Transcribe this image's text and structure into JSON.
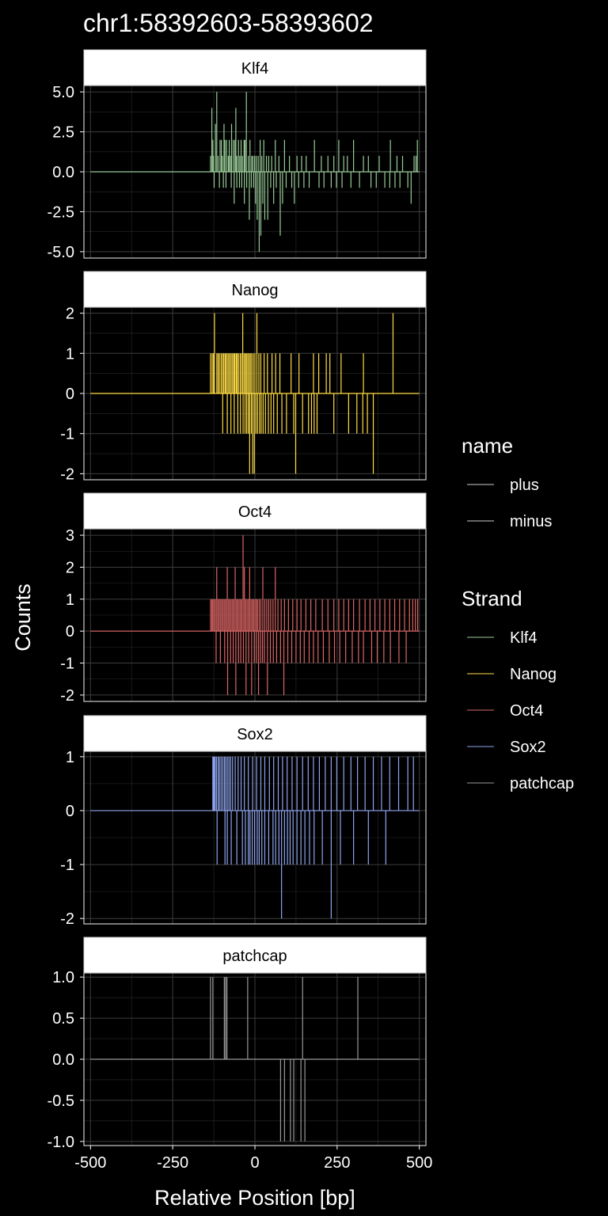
{
  "chart_data": {
    "type": "line",
    "title": "chr1:58392603-58393602",
    "xlabel": "Relative Position [bp]",
    "ylabel": "Counts",
    "xlim": [
      -520,
      520
    ],
    "x_ticks": [
      -500,
      -250,
      0,
      250,
      500
    ],
    "x_tick_labels": [
      "-500",
      "-250",
      "0",
      "250",
      "500"
    ],
    "grid": true,
    "legend_position": "right",
    "legends": [
      {
        "title": "name",
        "entries": [
          {
            "label": "plus",
            "color": "#cccccc"
          },
          {
            "label": "minus",
            "color": "#cccccc"
          }
        ]
      },
      {
        "title": "Strand",
        "entries": [
          {
            "label": "Klf4",
            "color": "#99cc99"
          },
          {
            "label": "Nanog",
            "color": "#ffdd44"
          },
          {
            "label": "Oct4",
            "color": "#dd6666"
          },
          {
            "label": "Sox2",
            "color": "#8fa4ee"
          },
          {
            "label": "patchcap",
            "color": "#999999"
          }
        ]
      }
    ],
    "facets": [
      {
        "label": "Klf4",
        "color": "#99cc99",
        "ylim": [
          -5.4,
          5.4
        ],
        "y_ticks": [
          -5,
          -2.5,
          0,
          2.5,
          5
        ],
        "y_tick_labels": [
          "-5.0",
          "-2.5",
          "0.0",
          "2.5",
          "5.0"
        ],
        "plus_x": [
          -135,
          -131,
          -128,
          -126,
          -120,
          -116,
          -112,
          -106,
          -102,
          -99,
          -94,
          -91,
          -86,
          -81,
          -78,
          -74,
          -71,
          -66,
          -61,
          -58,
          -55,
          -50,
          -46,
          -42,
          -38,
          -33,
          -30,
          -26,
          -20,
          -15,
          -10,
          -6,
          -1,
          4,
          10,
          16,
          21,
          27,
          35,
          42,
          51,
          62,
          73,
          90,
          105,
          128,
          142,
          156,
          181,
          202,
          222,
          240,
          255,
          270,
          281,
          300,
          330,
          345,
          378,
          412,
          432,
          449,
          484,
          490,
          494
        ],
        "plus_y": [
          1,
          4,
          2,
          1,
          3,
          5,
          1,
          2,
          2,
          1,
          3,
          2,
          2,
          1,
          2,
          1,
          3,
          2,
          2,
          4,
          1,
          2,
          1,
          2,
          1,
          2,
          2,
          5,
          1,
          2,
          1,
          1,
          1,
          1,
          1,
          2,
          1,
          2,
          1,
          1,
          1,
          2,
          1,
          2,
          1,
          1,
          1,
          1,
          2,
          1,
          1,
          1,
          2,
          1,
          1,
          2,
          1,
          1,
          1,
          2,
          1,
          1,
          1,
          1,
          2
        ],
        "minus_x": [
          -124,
          -108,
          -96,
          -88,
          -72,
          -63,
          -55,
          -47,
          -40,
          -32,
          -25,
          -17,
          -11,
          -4,
          2,
          7,
          13,
          18,
          24,
          30,
          39,
          48,
          57,
          65,
          77,
          84,
          95,
          112,
          120,
          133,
          149,
          165,
          195,
          210,
          232,
          248,
          265,
          292,
          318,
          353,
          369,
          395,
          410,
          426,
          441,
          465,
          475
        ],
        "minus_y": [
          1,
          1,
          1,
          1,
          1,
          2,
          1,
          1,
          1,
          2,
          1,
          3,
          1,
          1,
          2,
          3,
          5,
          4,
          2,
          3,
          3,
          1,
          2,
          1,
          4,
          2,
          1,
          1,
          2,
          1,
          1,
          1,
          1,
          1,
          1,
          1,
          1,
          1,
          1,
          1,
          1,
          1,
          1,
          1,
          1,
          1,
          2
        ]
      },
      {
        "label": "Nanog",
        "color": "#ffdd44",
        "ylim": [
          -2.15,
          2.15
        ],
        "y_ticks": [
          -2,
          -1,
          0,
          1,
          2
        ],
        "y_tick_labels": [
          "-2",
          "-1",
          "0",
          "1",
          "2"
        ],
        "plus_x": [
          -135,
          -130,
          -126,
          -123,
          -116,
          -112,
          -108,
          -103,
          -99,
          -95,
          -91,
          -88,
          -84,
          -80,
          -76,
          -72,
          -68,
          -64,
          -61,
          -57,
          -54,
          -50,
          -45,
          -41,
          -37,
          -33,
          -29,
          -26,
          -22,
          -18,
          -14,
          -10,
          -5,
          0,
          6,
          12,
          18,
          28,
          38,
          52,
          63,
          76,
          110,
          134,
          178,
          194,
          217,
          228,
          262,
          330,
          420
        ],
        "plus_y": [
          1,
          1,
          1,
          2,
          1,
          1,
          1,
          1,
          1,
          1,
          1,
          1,
          1,
          1,
          1,
          1,
          1,
          1,
          1,
          1,
          1,
          1,
          1,
          1,
          2,
          1,
          1,
          1,
          1,
          1,
          1,
          1,
          1,
          1,
          2,
          1,
          1,
          1,
          1,
          1,
          1,
          1,
          1,
          1,
          1,
          1,
          1,
          1,
          1,
          1,
          2
        ],
        "minus_x": [
          -98,
          -84,
          -73,
          -63,
          -52,
          -44,
          -36,
          -30,
          -25,
          -20,
          -16,
          -11,
          -7,
          -2,
          3,
          8,
          14,
          19,
          25,
          32,
          41,
          49,
          57,
          68,
          82,
          96,
          118,
          124,
          145,
          163,
          172,
          180,
          189,
          240,
          285,
          310,
          328,
          342,
          360
        ],
        "minus_y": [
          1,
          1,
          1,
          1,
          1,
          1,
          1,
          1,
          1,
          1,
          2,
          1,
          2,
          2,
          1,
          1,
          1,
          1,
          1,
          1,
          1,
          1,
          1,
          1,
          1,
          1,
          1,
          2,
          1,
          1,
          1,
          1,
          1,
          1,
          1,
          1,
          1,
          1,
          2
        ]
      },
      {
        "label": "Oct4",
        "color": "#dd6666",
        "ylim": [
          -2.2,
          3.2
        ],
        "y_ticks": [
          -2,
          -1,
          0,
          1,
          2,
          3
        ],
        "y_tick_labels": [
          "-2",
          "-1",
          "0",
          "1",
          "2",
          "3"
        ],
        "plus_x": [
          -135,
          -131,
          -128,
          -124,
          -120,
          -116,
          -112,
          -108,
          -104,
          -100,
          -96,
          -92,
          -88,
          -84,
          -80,
          -76,
          -72,
          -68,
          -64,
          -60,
          -56,
          -52,
          -48,
          -44,
          -40,
          -36,
          -32,
          -28,
          -24,
          -20,
          -16,
          -12,
          -8,
          -4,
          0,
          4,
          8,
          13,
          18,
          24,
          30,
          36,
          42,
          48,
          55,
          62,
          70,
          80,
          90,
          102,
          115,
          128,
          140,
          155,
          170,
          185,
          205,
          222,
          240,
          255,
          270,
          285,
          300,
          318,
          335,
          350,
          365,
          380,
          395,
          410,
          425,
          440,
          455,
          470,
          480,
          488,
          495
        ],
        "plus_y": [
          1,
          1,
          1,
          1,
          1,
          2,
          1,
          1,
          1,
          1,
          1,
          1,
          1,
          2,
          1,
          1,
          1,
          1,
          1,
          2,
          1,
          1,
          1,
          1,
          1,
          3,
          2,
          1,
          1,
          1,
          2,
          1,
          1,
          1,
          1,
          1,
          1,
          1,
          1,
          2,
          1,
          1,
          1,
          1,
          1,
          2,
          1,
          1,
          1,
          1,
          1,
          1,
          1,
          1,
          1,
          1,
          1,
          1,
          1,
          1,
          1,
          1,
          1,
          1,
          1,
          1,
          1,
          1,
          1,
          1,
          1,
          1,
          1,
          1,
          1,
          1,
          1
        ],
        "minus_x": [
          -118,
          -105,
          -92,
          -83,
          -74,
          -66,
          -58,
          -50,
          -43,
          -35,
          -27,
          -19,
          -10,
          -2,
          5,
          11,
          17,
          23,
          29,
          38,
          47,
          56,
          66,
          78,
          88,
          100,
          112,
          125,
          138,
          150,
          165,
          178,
          192,
          208,
          226,
          242,
          258,
          276,
          296,
          315,
          330,
          355,
          372,
          392,
          412,
          438,
          460
        ],
        "minus_y": [
          1,
          1,
          1,
          2,
          1,
          1,
          2,
          1,
          1,
          1,
          2,
          1,
          2,
          1,
          1,
          2,
          1,
          1,
          1,
          2,
          1,
          1,
          1,
          1,
          2,
          1,
          1,
          1,
          1,
          1,
          1,
          1,
          1,
          1,
          1,
          1,
          1,
          1,
          1,
          1,
          1,
          1,
          1,
          1,
          1,
          1,
          1
        ]
      },
      {
        "label": "Sox2",
        "color": "#8fa4ee",
        "ylim": [
          -2.1,
          1.1
        ],
        "y_ticks": [
          -2,
          -1,
          0,
          1
        ],
        "y_tick_labels": [
          "-2",
          "-1",
          "0",
          "1"
        ],
        "plus_x": [
          -128,
          -126,
          -124,
          -121,
          -117,
          -112,
          -108,
          -103,
          -98,
          -93,
          -89,
          -84,
          -79,
          -74,
          -68,
          -60,
          -51,
          -42,
          -32,
          -20,
          -7,
          5,
          18,
          30,
          44,
          57,
          71,
          84,
          98,
          113,
          128,
          145,
          162,
          178,
          196,
          214,
          232,
          249,
          270,
          292,
          312,
          335,
          360,
          385,
          410,
          437,
          465,
          482
        ],
        "plus_y": [
          1,
          1,
          1,
          1,
          1,
          1,
          1,
          1,
          1,
          1,
          1,
          1,
          1,
          1,
          1,
          1,
          1,
          1,
          1,
          1,
          1,
          1,
          1,
          1,
          1,
          1,
          1,
          1,
          1,
          1,
          1,
          1,
          1,
          1,
          1,
          1,
          1,
          1,
          1,
          1,
          1,
          1,
          1,
          1,
          1,
          1,
          1,
          1
        ],
        "minus_x": [
          -115,
          -91,
          -84,
          -72,
          -55,
          -38,
          -29,
          -20,
          -15,
          -8,
          -1,
          7,
          13,
          21,
          30,
          42,
          55,
          63,
          73,
          81,
          90,
          99,
          107,
          116,
          128,
          140,
          152,
          166,
          180,
          205,
          232,
          260,
          300,
          345,
          398
        ],
        "minus_y": [
          1,
          1,
          1,
          1,
          1,
          1,
          1,
          1,
          1,
          1,
          1,
          1,
          1,
          1,
          1,
          1,
          1,
          1,
          1,
          2,
          1,
          1,
          1,
          1,
          1,
          1,
          1,
          1,
          1,
          1,
          2,
          1,
          1,
          1,
          1
        ]
      },
      {
        "label": "patchcap",
        "color": "#999999",
        "ylim": [
          -1.05,
          1.05
        ],
        "y_ticks": [
          -1,
          -0.5,
          0,
          0.5,
          1
        ],
        "y_tick_labels": [
          "-1.0",
          "-0.5",
          "0.0",
          "0.5",
          "1.0"
        ],
        "plus_x": [
          -135,
          -128,
          -93,
          -89,
          -85,
          -22,
          145,
          313
        ],
        "plus_y": [
          1,
          1,
          1,
          1,
          1,
          1,
          1,
          1
        ],
        "minus_x": [
          78,
          90,
          108,
          118,
          140,
          152
        ],
        "minus_y": [
          1,
          1,
          1,
          1,
          1,
          1
        ]
      }
    ]
  }
}
